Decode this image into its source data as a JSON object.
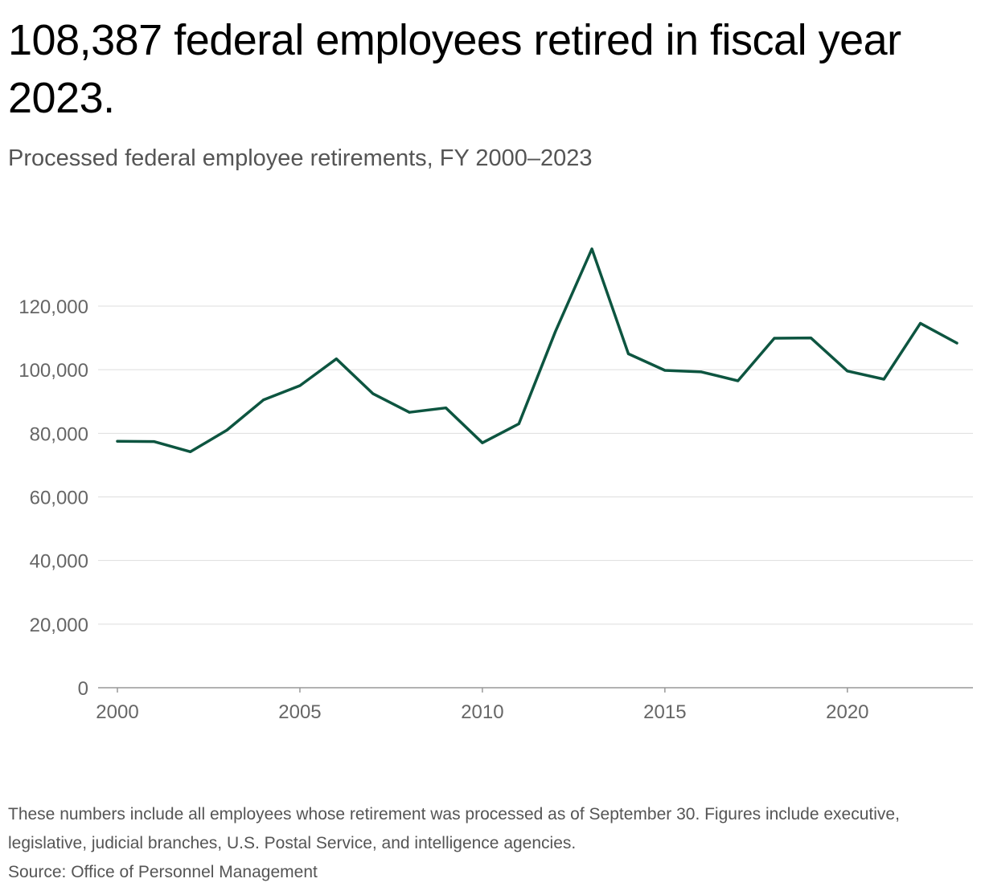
{
  "header": {
    "title": "108,387 federal employees retired in fiscal year 2023.",
    "subtitle": "Processed federal employee retirements, FY 2000–2023"
  },
  "footer": {
    "note": "These numbers include all employees whose retirement was processed as of September 30. Figures include executive, legislative, judicial branches, U.S. Postal Service, and intelligence agencies.",
    "source": "Source: Office of Personnel Management"
  },
  "colors": {
    "line": "#0d5540",
    "grid": "#dddddd",
    "axis": "#999999",
    "tick_text": "#666666"
  },
  "chart_data": {
    "type": "line",
    "title": "108,387 federal employees retired in fiscal year 2023.",
    "subtitle": "Processed federal employee retirements, FY 2000–2023",
    "xlabel": "",
    "ylabel": "",
    "x": [
      2000,
      2001,
      2002,
      2003,
      2004,
      2005,
      2006,
      2007,
      2008,
      2009,
      2010,
      2011,
      2012,
      2013,
      2014,
      2015,
      2016,
      2017,
      2018,
      2019,
      2020,
      2021,
      2022,
      2023
    ],
    "series": [
      {
        "name": "Processed federal employee retirements",
        "values": [
          77500,
          77400,
          74200,
          81000,
          90500,
          95000,
          103400,
          92500,
          86600,
          88000,
          77000,
          83000,
          112000,
          138000,
          105000,
          99800,
          99300,
          96500,
          109900,
          110000,
          99600,
          97000,
          114600,
          108387
        ]
      }
    ],
    "xlim": [
      2000,
      2023
    ],
    "ylim": [
      0,
      140000
    ],
    "xticks": [
      2000,
      2005,
      2010,
      2015,
      2020
    ],
    "xtick_labels": [
      "2000",
      "2005",
      "2010",
      "2015",
      "2020"
    ],
    "yticks": [
      0,
      20000,
      40000,
      60000,
      80000,
      100000,
      120000
    ],
    "ytick_labels": [
      "0",
      "20,000",
      "40,000",
      "60,000",
      "80,000",
      "100,000",
      "120,000"
    ],
    "grid": true,
    "legend": "none"
  }
}
